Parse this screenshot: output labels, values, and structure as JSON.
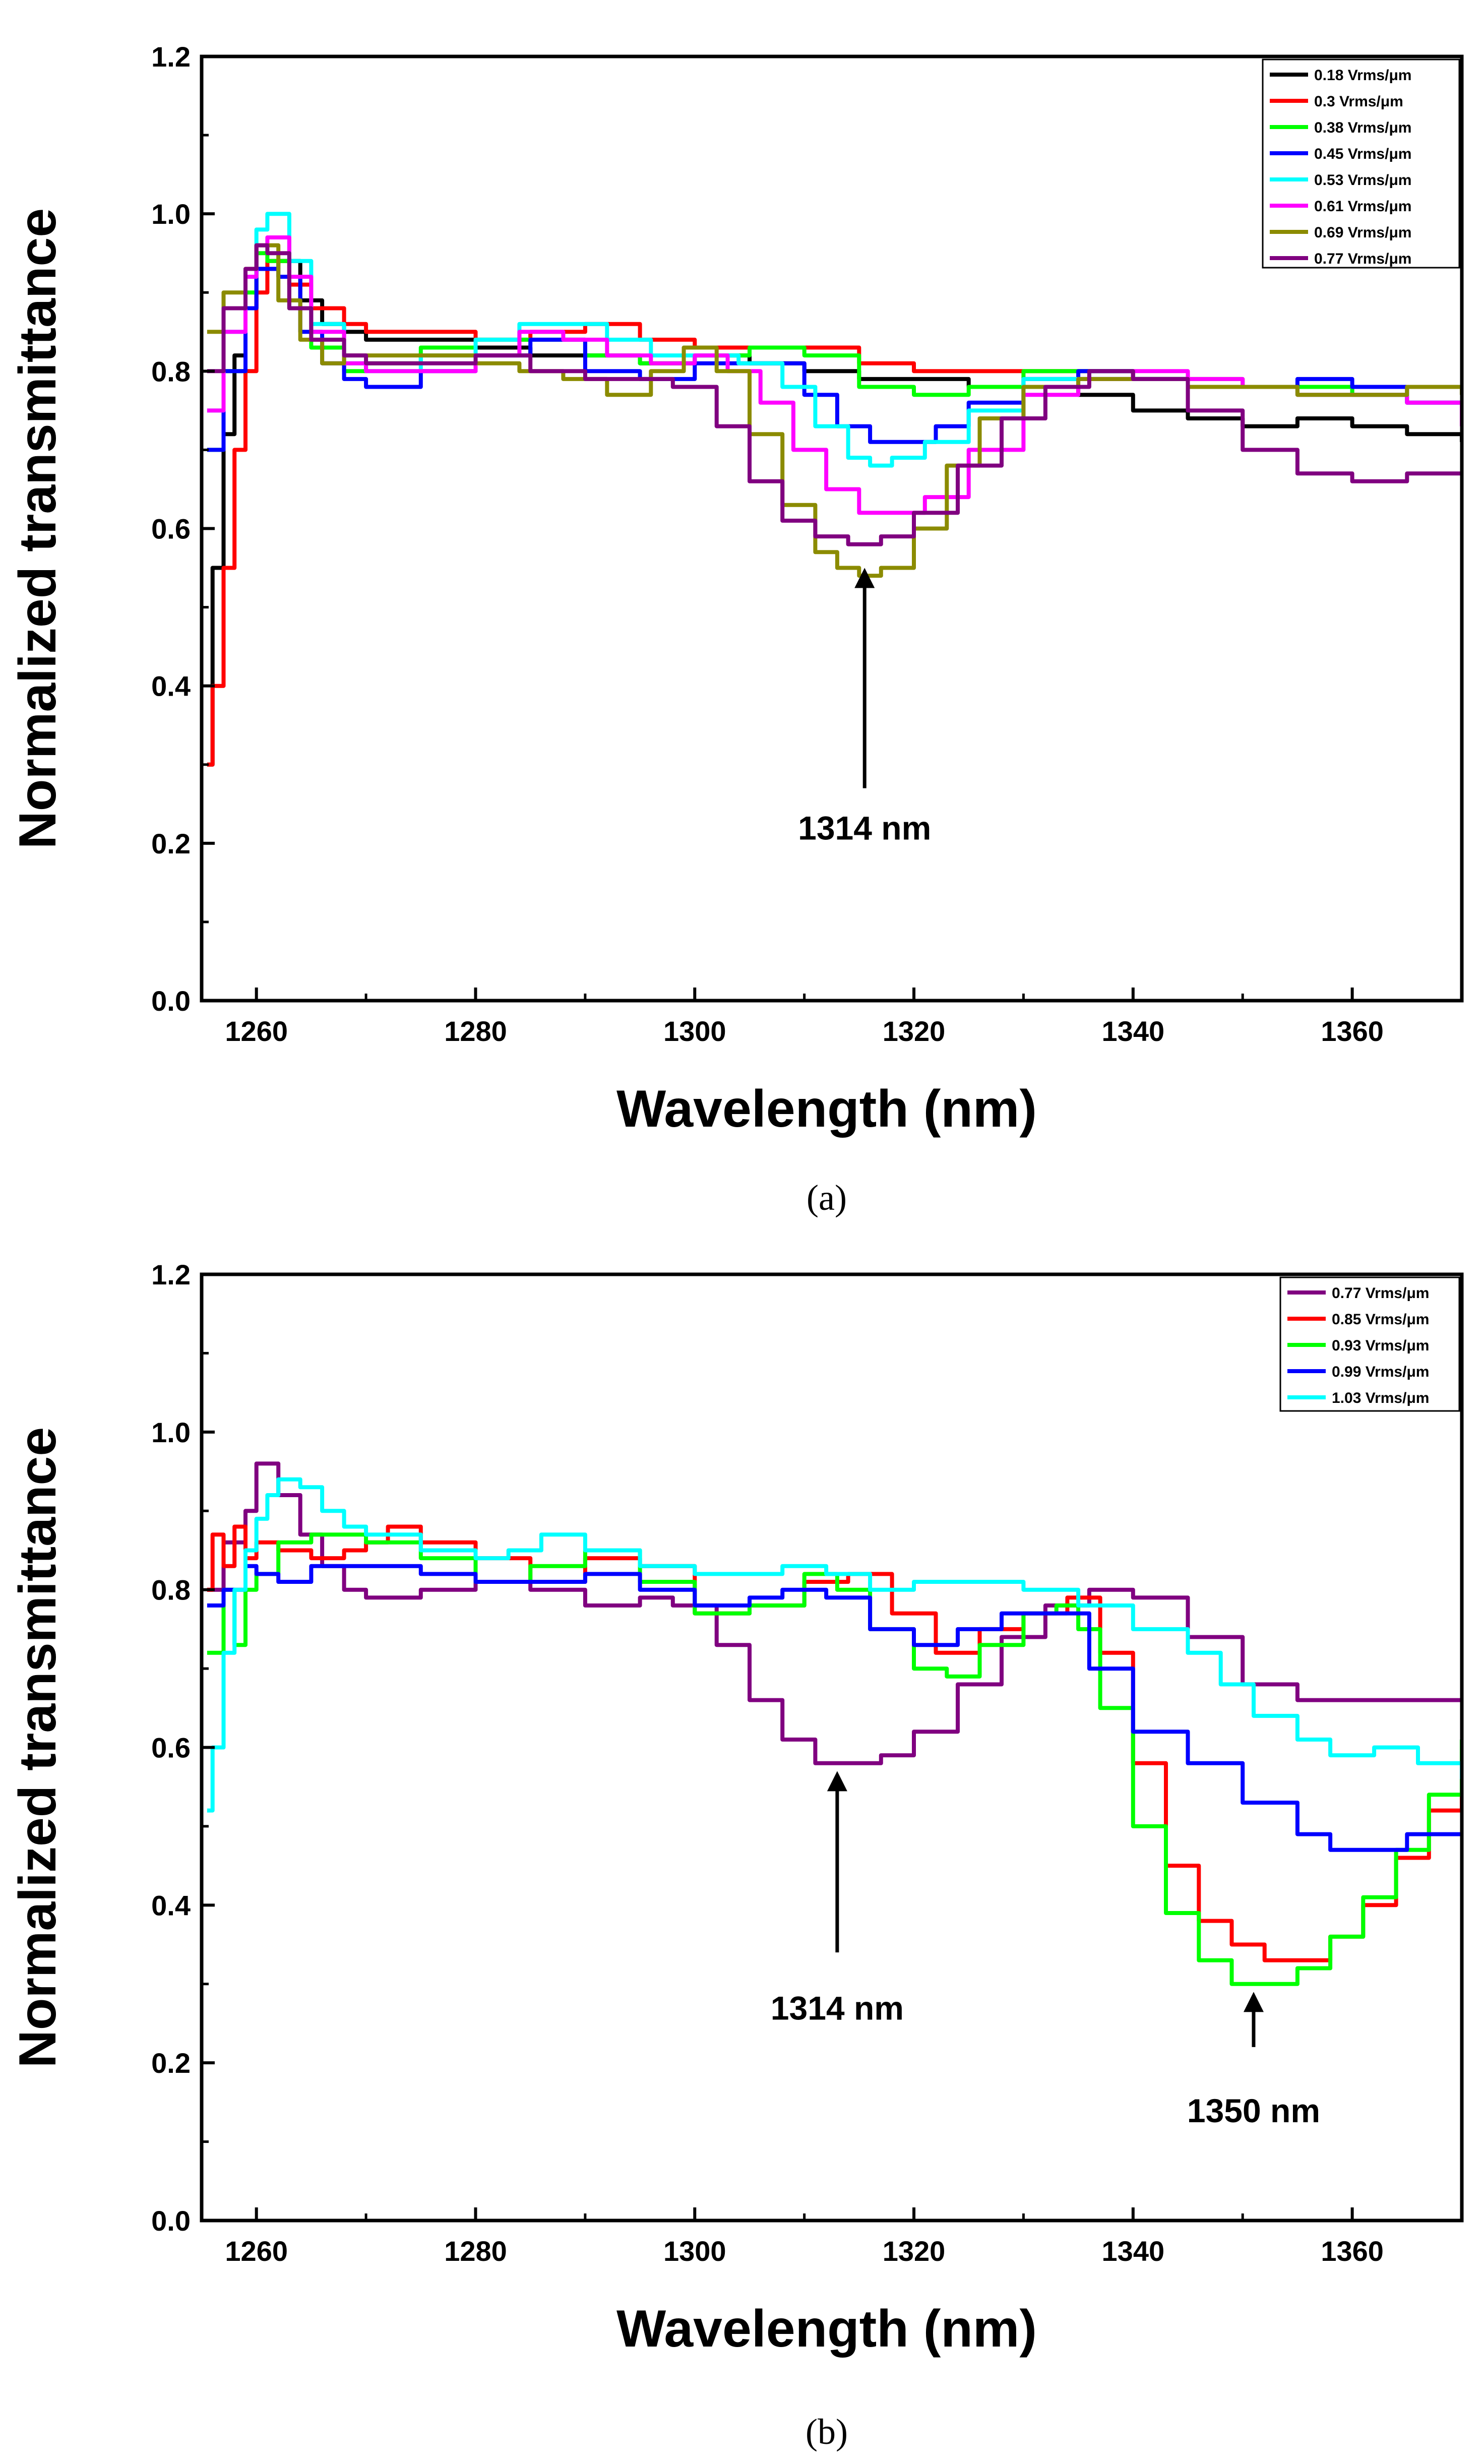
{
  "chart_data": [
    {
      "type": "line",
      "panel_label": "(a)",
      "xlabel": "Wavelength (nm)",
      "ylabel": "Normalized transmittance",
      "xlim": [
        1255,
        1370
      ],
      "ylim": [
        0.0,
        1.2
      ],
      "x_ticks": [
        "1260",
        "1280",
        "1300",
        "1320",
        "1340",
        "1360"
      ],
      "y_ticks": [
        "0.0",
        "0.2",
        "0.4",
        "0.6",
        "0.8",
        "1.0",
        "1.2"
      ],
      "legend_position": "top-right",
      "grid": false,
      "annotations": [
        {
          "text": "1314 nm",
          "x": 1315.5,
          "arrow_tip_y": 0.55,
          "arrow_tail_y": 0.27,
          "label_y": 0.22
        }
      ],
      "series": [
        {
          "name": "0.18 Vrms/μm",
          "color": "#000000",
          "x": [
            1255.5,
            1256,
            1257,
            1258,
            1259,
            1260,
            1262,
            1264,
            1266,
            1268,
            1270,
            1275,
            1280,
            1285,
            1290,
            1295,
            1300,
            1305,
            1310,
            1315,
            1320,
            1325,
            1330,
            1335,
            1340,
            1345,
            1350,
            1355,
            1360,
            1365,
            1370
          ],
          "y": [
            0.3,
            0.55,
            0.72,
            0.82,
            0.88,
            0.93,
            0.94,
            0.89,
            0.86,
            0.85,
            0.84,
            0.84,
            0.83,
            0.82,
            0.82,
            0.81,
            0.82,
            0.81,
            0.8,
            0.79,
            0.79,
            0.78,
            0.78,
            0.77,
            0.75,
            0.74,
            0.73,
            0.74,
            0.73,
            0.72,
            0.71
          ]
        },
        {
          "name": "0.3 Vrms/μm",
          "color": "#ff0000",
          "x": [
            1255.5,
            1256,
            1257,
            1258,
            1259,
            1260,
            1261,
            1263,
            1265,
            1268,
            1270,
            1275,
            1280,
            1285,
            1290,
            1295,
            1300,
            1305,
            1310,
            1315,
            1320,
            1325,
            1330,
            1335,
            1340,
            1345,
            1350,
            1355,
            1360,
            1365,
            1370
          ],
          "y": [
            0.3,
            0.4,
            0.55,
            0.7,
            0.8,
            0.9,
            0.94,
            0.91,
            0.88,
            0.86,
            0.85,
            0.85,
            0.84,
            0.85,
            0.86,
            0.84,
            0.83,
            0.83,
            0.83,
            0.81,
            0.8,
            0.8,
            0.8,
            0.8,
            0.79,
            0.78,
            0.78,
            0.78,
            0.77,
            0.76,
            0.74
          ]
        },
        {
          "name": "0.38 Vrms/μm",
          "color": "#00ff00",
          "x": [
            1255.5,
            1257,
            1259,
            1260,
            1261,
            1263,
            1265,
            1268,
            1270,
            1275,
            1280,
            1285,
            1290,
            1295,
            1300,
            1305,
            1310,
            1315,
            1320,
            1325,
            1330,
            1335,
            1340,
            1345,
            1350,
            1355,
            1360,
            1365,
            1370
          ],
          "y": [
            0.7,
            0.8,
            0.9,
            0.95,
            0.94,
            0.88,
            0.83,
            0.8,
            0.81,
            0.83,
            0.84,
            0.84,
            0.82,
            0.81,
            0.82,
            0.83,
            0.82,
            0.78,
            0.77,
            0.78,
            0.8,
            0.8,
            0.79,
            0.79,
            0.78,
            0.78,
            0.77,
            0.76,
            0.74
          ]
        },
        {
          "name": "0.45 Vrms/μm",
          "color": "#0000ff",
          "x": [
            1255.5,
            1257,
            1259,
            1260,
            1262,
            1264,
            1266,
            1268,
            1270,
            1275,
            1280,
            1285,
            1290,
            1295,
            1300,
            1305,
            1310,
            1313,
            1316,
            1319,
            1322,
            1325,
            1330,
            1335,
            1340,
            1345,
            1350,
            1355,
            1360,
            1365,
            1370
          ],
          "y": [
            0.7,
            0.8,
            0.88,
            0.93,
            0.92,
            0.85,
            0.81,
            0.79,
            0.78,
            0.8,
            0.82,
            0.84,
            0.8,
            0.79,
            0.81,
            0.81,
            0.77,
            0.73,
            0.71,
            0.71,
            0.73,
            0.76,
            0.79,
            0.8,
            0.79,
            0.78,
            0.78,
            0.79,
            0.78,
            0.76,
            0.74
          ]
        },
        {
          "name": "0.53 Vrms/μm",
          "color": "#00ffff",
          "x": [
            1255.5,
            1257,
            1259,
            1260,
            1261,
            1263,
            1265,
            1268,
            1270,
            1275,
            1280,
            1284,
            1288,
            1292,
            1296,
            1300,
            1304,
            1308,
            1311,
            1314,
            1316,
            1318,
            1321,
            1325,
            1330,
            1335,
            1340,
            1345,
            1350,
            1355,
            1360,
            1365,
            1370
          ],
          "y": [
            0.75,
            0.85,
            0.92,
            0.98,
            1.0,
            0.94,
            0.86,
            0.81,
            0.8,
            0.82,
            0.84,
            0.86,
            0.86,
            0.84,
            0.82,
            0.82,
            0.81,
            0.78,
            0.73,
            0.69,
            0.68,
            0.69,
            0.71,
            0.75,
            0.79,
            0.79,
            0.79,
            0.78,
            0.78,
            0.77,
            0.77,
            0.76,
            0.75
          ]
        },
        {
          "name": "0.61 Vrms/μm",
          "color": "#ff00ff",
          "x": [
            1255.5,
            1257,
            1259,
            1260,
            1261,
            1263,
            1265,
            1268,
            1270,
            1275,
            1280,
            1284,
            1288,
            1292,
            1296,
            1300,
            1303,
            1306,
            1309,
            1312,
            1315,
            1318,
            1321,
            1325,
            1330,
            1335,
            1340,
            1345,
            1350,
            1355,
            1360,
            1365,
            1370
          ],
          "y": [
            0.75,
            0.85,
            0.92,
            0.96,
            0.97,
            0.92,
            0.85,
            0.81,
            0.8,
            0.8,
            0.82,
            0.85,
            0.84,
            0.82,
            0.81,
            0.82,
            0.8,
            0.76,
            0.7,
            0.65,
            0.62,
            0.62,
            0.64,
            0.7,
            0.77,
            0.79,
            0.8,
            0.79,
            0.78,
            0.77,
            0.77,
            0.76,
            0.73
          ]
        },
        {
          "name": "0.69 Vrms/μm",
          "color": "#8b8b00",
          "x": [
            1255.5,
            1257,
            1259,
            1260,
            1262,
            1264,
            1266,
            1268,
            1270,
            1275,
            1280,
            1284,
            1288,
            1292,
            1296,
            1299,
            1302,
            1305,
            1308,
            1311,
            1313,
            1315,
            1317,
            1320,
            1323,
            1326,
            1330,
            1335,
            1340,
            1345,
            1350,
            1355,
            1360,
            1365,
            1370
          ],
          "y": [
            0.85,
            0.9,
            0.93,
            0.96,
            0.89,
            0.84,
            0.81,
            0.82,
            0.82,
            0.82,
            0.81,
            0.8,
            0.79,
            0.77,
            0.8,
            0.83,
            0.8,
            0.72,
            0.63,
            0.57,
            0.55,
            0.54,
            0.55,
            0.6,
            0.68,
            0.74,
            0.78,
            0.79,
            0.79,
            0.78,
            0.78,
            0.77,
            0.77,
            0.78,
            0.77
          ]
        },
        {
          "name": "0.77 Vrms/μm",
          "color": "#800080",
          "x": [
            1255.5,
            1257,
            1259,
            1260,
            1261,
            1263,
            1265,
            1268,
            1270,
            1275,
            1280,
            1285,
            1290,
            1295,
            1298,
            1302,
            1305,
            1308,
            1311,
            1314,
            1317,
            1320,
            1324,
            1328,
            1332,
            1336,
            1340,
            1345,
            1350,
            1355,
            1360,
            1365,
            1370
          ],
          "y": [
            0.8,
            0.88,
            0.93,
            0.96,
            0.95,
            0.88,
            0.84,
            0.82,
            0.81,
            0.81,
            0.82,
            0.8,
            0.79,
            0.79,
            0.78,
            0.73,
            0.66,
            0.61,
            0.59,
            0.58,
            0.59,
            0.62,
            0.68,
            0.74,
            0.78,
            0.8,
            0.79,
            0.75,
            0.7,
            0.67,
            0.66,
            0.67,
            0.67
          ]
        }
      ]
    },
    {
      "type": "line",
      "panel_label": "(b)",
      "xlabel": "Wavelength (nm)",
      "ylabel": "Normalized transmittance",
      "xlim": [
        1255,
        1370
      ],
      "ylim": [
        0.0,
        1.2
      ],
      "x_ticks": [
        "1260",
        "1280",
        "1300",
        "1320",
        "1340",
        "1360"
      ],
      "y_ticks": [
        "0.0",
        "0.2",
        "0.4",
        "0.6",
        "0.8",
        "1.0",
        "1.2"
      ],
      "legend_position": "top-right",
      "grid": false,
      "annotations": [
        {
          "text": "1314 nm",
          "x": 1313,
          "arrow_tip_y": 0.57,
          "arrow_tail_y": 0.34,
          "label_y": 0.27
        },
        {
          "text": "1350 nm",
          "x": 1351,
          "arrow_tip_y": 0.29,
          "arrow_tail_y": 0.22,
          "label_y": 0.14
        }
      ],
      "series": [
        {
          "name": "0.77 Vrms/μm",
          "color": "#800080",
          "x": [
            1255.5,
            1257,
            1259,
            1260,
            1261,
            1262,
            1264,
            1266,
            1268,
            1270,
            1275,
            1280,
            1285,
            1290,
            1295,
            1298,
            1302,
            1305,
            1308,
            1311,
            1314,
            1317,
            1320,
            1324,
            1328,
            1332,
            1336,
            1340,
            1345,
            1350,
            1355,
            1360,
            1365,
            1370
          ],
          "y": [
            0.8,
            0.86,
            0.9,
            0.96,
            0.96,
            0.92,
            0.87,
            0.83,
            0.8,
            0.79,
            0.8,
            0.81,
            0.8,
            0.78,
            0.79,
            0.78,
            0.73,
            0.66,
            0.61,
            0.58,
            0.58,
            0.59,
            0.62,
            0.68,
            0.74,
            0.78,
            0.8,
            0.79,
            0.74,
            0.68,
            0.66,
            0.66,
            0.66,
            0.66
          ]
        },
        {
          "name": "0.85 Vrms/μm",
          "color": "#ff0000",
          "x": [
            1255.5,
            1256,
            1257,
            1258,
            1259,
            1260,
            1262,
            1265,
            1268,
            1270,
            1272,
            1275,
            1280,
            1285,
            1290,
            1295,
            1300,
            1305,
            1310,
            1314,
            1318,
            1322,
            1326,
            1330,
            1334,
            1337,
            1340,
            1343,
            1346,
            1349,
            1352,
            1355,
            1358,
            1361,
            1364,
            1367,
            1370
          ],
          "y": [
            0.8,
            0.87,
            0.83,
            0.88,
            0.84,
            0.86,
            0.85,
            0.84,
            0.85,
            0.86,
            0.88,
            0.86,
            0.84,
            0.81,
            0.84,
            0.83,
            0.77,
            0.78,
            0.81,
            0.82,
            0.77,
            0.72,
            0.75,
            0.77,
            0.79,
            0.72,
            0.58,
            0.45,
            0.38,
            0.35,
            0.33,
            0.33,
            0.36,
            0.4,
            0.46,
            0.52,
            0.6
          ]
        },
        {
          "name": "0.93 Vrms/μm",
          "color": "#00ff00",
          "x": [
            1255.5,
            1257,
            1258,
            1259,
            1260,
            1262,
            1265,
            1268,
            1270,
            1275,
            1280,
            1285,
            1290,
            1295,
            1300,
            1305,
            1310,
            1313,
            1316,
            1320,
            1323,
            1326,
            1330,
            1333,
            1335,
            1337,
            1340,
            1343,
            1346,
            1349,
            1352,
            1355,
            1358,
            1361,
            1364,
            1367,
            1370
          ],
          "y": [
            0.72,
            0.8,
            0.73,
            0.8,
            0.82,
            0.86,
            0.87,
            0.87,
            0.86,
            0.84,
            0.81,
            0.83,
            0.85,
            0.81,
            0.77,
            0.78,
            0.82,
            0.8,
            0.75,
            0.7,
            0.69,
            0.73,
            0.77,
            0.78,
            0.75,
            0.65,
            0.5,
            0.39,
            0.33,
            0.3,
            0.3,
            0.32,
            0.36,
            0.41,
            0.47,
            0.54,
            0.61
          ]
        },
        {
          "name": "0.99 Vrms/μm",
          "color": "#0000ff",
          "x": [
            1255.5,
            1257,
            1259,
            1260,
            1262,
            1265,
            1270,
            1275,
            1280,
            1285,
            1290,
            1295,
            1300,
            1305,
            1308,
            1312,
            1316,
            1320,
            1324,
            1328,
            1332,
            1336,
            1340,
            1345,
            1350,
            1355,
            1358,
            1361,
            1365,
            1370
          ],
          "y": [
            0.78,
            0.8,
            0.83,
            0.82,
            0.81,
            0.83,
            0.83,
            0.82,
            0.81,
            0.81,
            0.82,
            0.8,
            0.78,
            0.79,
            0.8,
            0.79,
            0.75,
            0.73,
            0.75,
            0.77,
            0.77,
            0.7,
            0.62,
            0.58,
            0.53,
            0.49,
            0.47,
            0.47,
            0.49,
            0.49
          ]
        },
        {
          "name": "1.03 Vrms/μm",
          "color": "#00ffff",
          "x": [
            1255.5,
            1256,
            1257,
            1258,
            1259,
            1260,
            1261,
            1262,
            1264,
            1266,
            1268,
            1270,
            1275,
            1280,
            1283,
            1286,
            1290,
            1295,
            1300,
            1305,
            1308,
            1312,
            1316,
            1320,
            1325,
            1330,
            1335,
            1340,
            1345,
            1348,
            1351,
            1355,
            1358,
            1362,
            1366,
            1370
          ],
          "y": [
            0.52,
            0.6,
            0.72,
            0.8,
            0.85,
            0.89,
            0.92,
            0.94,
            0.93,
            0.9,
            0.88,
            0.87,
            0.85,
            0.84,
            0.85,
            0.87,
            0.85,
            0.83,
            0.82,
            0.82,
            0.83,
            0.82,
            0.8,
            0.81,
            0.81,
            0.8,
            0.78,
            0.75,
            0.72,
            0.68,
            0.64,
            0.61,
            0.59,
            0.6,
            0.58,
            0.56
          ]
        }
      ]
    }
  ]
}
